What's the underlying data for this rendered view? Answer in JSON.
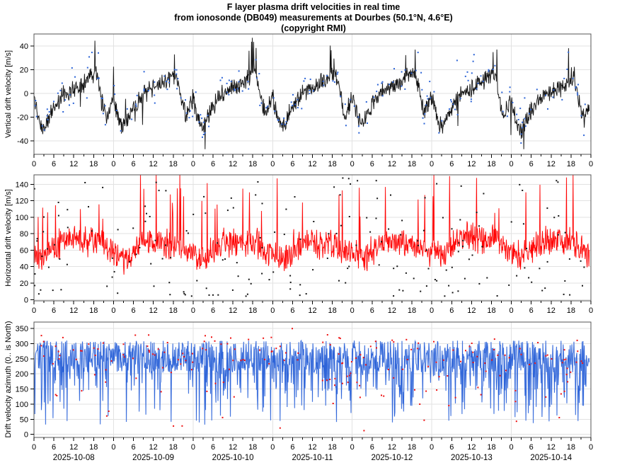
{
  "title": {
    "line1": "F layer plasma drift velocities in real time",
    "line2": "from ionosonde (DB049) measurements at Dourbes (50.1°N, 4.6°E)",
    "line3": "(copyright RMI)"
  },
  "x_axis": {
    "dates": [
      "2025-10-08",
      "2025-10-09",
      "2025-10-10",
      "2025-10-11",
      "2025-10-12",
      "2025-10-13",
      "2025-10-14"
    ],
    "hour_tick_labels": [
      "0",
      "6",
      "12",
      "18"
    ],
    "major_tick_step_hours": 6,
    "minor_tick_step_hours": 3,
    "total_hours": 168,
    "data_end_hour": 167.5
  },
  "style": {
    "grid_color": "#e2e2e2",
    "spine_color": "#555555",
    "tick_color": "#000000",
    "tick_label_color": "#000000"
  },
  "chart_data": [
    {
      "id": "vertical-drift",
      "type": "line+scatter",
      "model": "diurnal",
      "ylabel": "Vertical drift velocity [m/s]",
      "ylim": [
        -51.3,
        50.2
      ],
      "yticks": [
        -40,
        -20,
        0,
        20,
        40
      ],
      "grid": true,
      "legend": "none",
      "line_color": "#101010",
      "line_halo_color": "#a8a8a8",
      "dot_color": "#2b63d6",
      "hourly_profile": [
        -4,
        -16,
        -26,
        -29,
        -24,
        -17,
        -12,
        -8,
        -4,
        -1,
        1,
        3,
        4,
        5,
        7,
        9,
        11,
        14,
        17,
        14,
        3,
        -12,
        -20,
        -10
      ],
      "noise_amplitude": 9,
      "day_offset_range": 4,
      "spike_prob": 0.012,
      "spike_min": 8,
      "spike_max": 26,
      "evening_spike": {
        "from": 16.5,
        "to": 20,
        "prob": 0.1,
        "min": 8,
        "max": 30
      },
      "clamp": [
        -47,
        47
      ],
      "dots_per_day": 32,
      "dot_noise": 16,
      "dot_outlier_prob": 0.15,
      "seed": 11
    },
    {
      "id": "horizontal-drift",
      "type": "line+scatter",
      "model": "spiky",
      "ylabel": "Horizontal drift velocity [m/s]",
      "ylim": [
        -1.5,
        151.5
      ],
      "yticks": [
        0,
        20,
        40,
        60,
        80,
        100,
        120,
        140
      ],
      "grid": true,
      "legend": "none",
      "line_color": "#ff0000",
      "line_halo_color": "#ff9e9e",
      "dot_color": "#151515",
      "hourly_profile": [
        58,
        55,
        53,
        52,
        54,
        57,
        61,
        65,
        68,
        71,
        73,
        74,
        73,
        71,
        70,
        69,
        69,
        71,
        73,
        71,
        67,
        63,
        60,
        58
      ],
      "noise_amplitude": 21,
      "day_offset_range": 5,
      "spike_prob": 0.035,
      "spike_min": 25,
      "spike_max": 95,
      "clamp": [
        4,
        151.2
      ],
      "dots_per_day": 28,
      "dot_low": 4,
      "dot_high": 149,
      "dot_pow": 1.35,
      "seed": 22
    },
    {
      "id": "drift-azimuth",
      "type": "line+scatter",
      "model": "banded",
      "ylabel": "Drift velocity azimuth (0.. is North)",
      "ylim": [
        -10,
        371
      ],
      "yticks": [
        0,
        50,
        100,
        150,
        200,
        250,
        300,
        350
      ],
      "grid": true,
      "legend": "none",
      "line_color": "#2e64d8",
      "line_halo_color": "#8aabee",
      "dot_color": "#ee1111",
      "base_band": [
        205,
        310
      ],
      "mid_band": [
        140,
        225
      ],
      "dip_band": [
        30,
        165
      ],
      "mid_prob": 0.12,
      "dip_prob_min": 0.05,
      "dip_prob_max": 0.13,
      "clamp": [
        15,
        352
      ],
      "dots_per_day": 28,
      "dot_near_band": [
        235,
        330
      ],
      "dot_mid_band": [
        120,
        250
      ],
      "dot_near_prob": 0.5,
      "dot_mid_prob": 0.28,
      "seed": 33
    }
  ]
}
